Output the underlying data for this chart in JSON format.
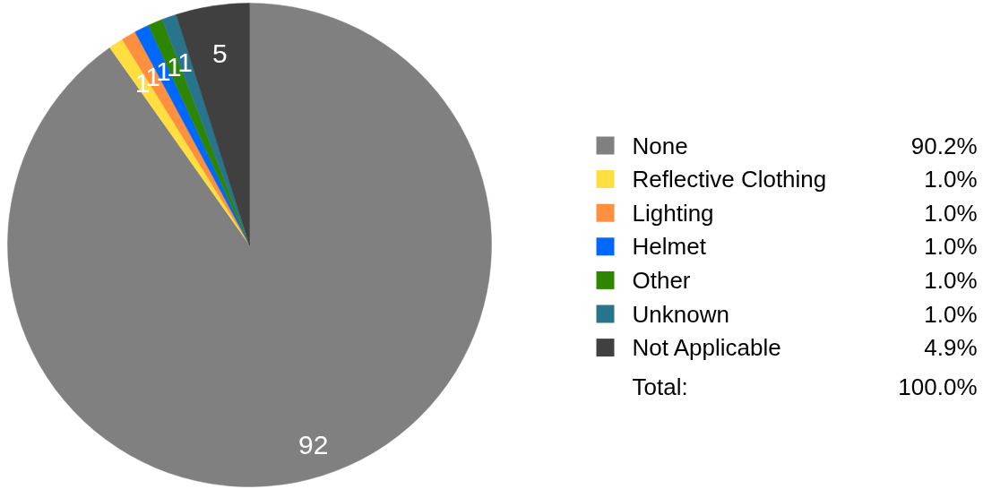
{
  "chart_data": {
    "type": "pie",
    "categories": [
      "None",
      "Reflective Clothing",
      "Lighting",
      "Helmet",
      "Other",
      "Unknown",
      "Not Applicable"
    ],
    "values": [
      92,
      1,
      1,
      1,
      1,
      1,
      5
    ],
    "colors": [
      "#808080",
      "#ffde40",
      "#ff9040",
      "#0068ff",
      "#2e8500",
      "#28748c",
      "#404040"
    ],
    "data_labels": true,
    "legend": "right",
    "annotations": [
      "90.2%",
      "1.0%",
      "1.0%",
      "1.0%",
      "1.0%",
      "1.0%",
      "4.9%",
      "Total:",
      "100.0%"
    ]
  }
}
